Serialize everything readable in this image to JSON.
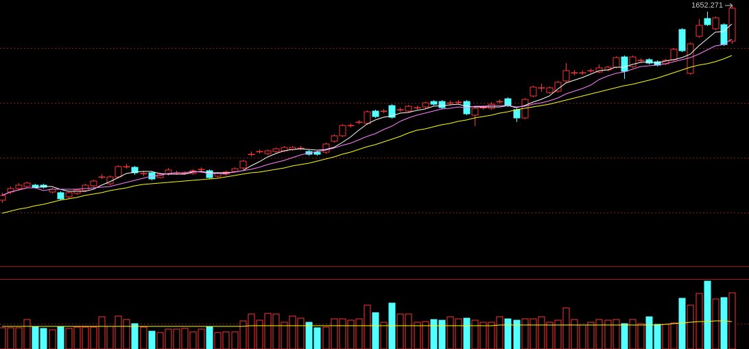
{
  "chart_data": [
    {
      "type": "candlestick",
      "annotation": "1652.271",
      "ylim": [
        1272,
        1660
      ],
      "yticks": [
        1350,
        1430,
        1510,
        1590
      ],
      "grid": true,
      "up_color": "#ff3232",
      "down_color": "#54ffff",
      "open": [
        1368,
        1380,
        1385,
        1388,
        1390,
        1390,
        1380,
        1379,
        1373,
        1378,
        1382,
        1389,
        1402,
        1392,
        1402,
        1417,
        1416,
        1407,
        1408,
        1401,
        1406,
        1408,
        1407,
        1407,
        1413,
        1411,
        1403,
        1406,
        1410,
        1415,
        1435,
        1439,
        1436,
        1439,
        1440,
        1442,
        1444,
        1439,
        1438,
        1438,
        1454,
        1462,
        1477,
        1482,
        1480,
        1498,
        1498,
        1506,
        1500,
        1498,
        1503,
        1504,
        1512,
        1512,
        1510,
        1511,
        1512,
        1492,
        1503,
        1502,
        1512,
        1516,
        1500,
        1488,
        1520,
        1532,
        1525,
        1527,
        1542,
        1554,
        1554,
        1557,
        1555,
        1558,
        1562,
        1577,
        1563,
        1572,
        1573,
        1570,
        1567,
        1573,
        1617,
        1553,
        1607,
        1633,
        1618,
        1624,
        1600
      ],
      "high": [
        1379,
        1388,
        1393,
        1395,
        1392,
        1392,
        1386,
        1381,
        1381,
        1385,
        1392,
        1398,
        1406,
        1404,
        1419,
        1421,
        1418,
        1411,
        1410,
        1408,
        1415,
        1411,
        1410,
        1413,
        1416,
        1413,
        1409,
        1411,
        1416,
        1427,
        1439,
        1442,
        1442,
        1445,
        1447,
        1447,
        1447,
        1441,
        1440,
        1452,
        1464,
        1479,
        1480,
        1485,
        1499,
        1500,
        1501,
        1508,
        1503,
        1507,
        1506,
        1512,
        1514,
        1514,
        1513,
        1514,
        1514,
        1504,
        1506,
        1511,
        1515,
        1518,
        1502,
        1517,
        1535,
        1538,
        1534,
        1542,
        1568,
        1558,
        1557,
        1560,
        1566,
        1564,
        1578,
        1579,
        1579,
        1575,
        1575,
        1572,
        1574,
        1590,
        1619,
        1598,
        1632,
        1643,
        1636,
        1626,
        1652.271
      ],
      "low": [
        1364,
        1377,
        1382,
        1386,
        1385,
        1385,
        1378,
        1368,
        1370,
        1376,
        1380,
        1387,
        1399,
        1390,
        1400,
        1414,
        1405,
        1403,
        1397,
        1400,
        1404,
        1405,
        1405,
        1405,
        1410,
        1399,
        1401,
        1404,
        1408,
        1413,
        1432,
        1436,
        1434,
        1437,
        1438,
        1440,
        1441,
        1433,
        1433,
        1436,
        1452,
        1460,
        1474,
        1479,
        1478,
        1488,
        1495,
        1487,
        1497,
        1496,
        1500,
        1502,
        1506,
        1501,
        1507,
        1508,
        1492,
        1476,
        1500,
        1500,
        1509,
        1504,
        1482,
        1486,
        1518,
        1526,
        1523,
        1525,
        1540,
        1550,
        1551,
        1554,
        1553,
        1556,
        1560,
        1545,
        1561,
        1569,
        1566,
        1563,
        1565,
        1571,
        1584,
        1551,
        1605,
        1622,
        1616,
        1593,
        1596
      ],
      "close": [
        1375,
        1385,
        1390,
        1393,
        1387,
        1387,
        1384,
        1370,
        1379,
        1383,
        1390,
        1396,
        1402,
        1402,
        1417,
        1417,
        1408,
        1407,
        1399,
        1406,
        1412,
        1408,
        1407,
        1411,
        1413,
        1401,
        1407,
        1409,
        1414,
        1425,
        1435,
        1439,
        1440,
        1443,
        1445,
        1445,
        1444,
        1435,
        1435,
        1450,
        1462,
        1477,
        1477,
        1482,
        1497,
        1490,
        1498,
        1489,
        1500,
        1505,
        1503,
        1510,
        1508,
        1503,
        1510,
        1511,
        1494,
        1502,
        1503,
        1508,
        1512,
        1506,
        1488,
        1515,
        1533,
        1532,
        1532,
        1540,
        1557,
        1554,
        1554,
        1557,
        1561,
        1562,
        1576,
        1556,
        1577,
        1572,
        1568,
        1565,
        1572,
        1588,
        1586,
        1596,
        1623,
        1624,
        1634,
        1595,
        1648
      ],
      "series": [
        {
          "color": "#ffffff",
          "values": [
            1375,
            1380,
            1383,
            1386,
            1386,
            1388,
            1388,
            1384,
            1381,
            1381,
            1381,
            1384,
            1390,
            1395,
            1401,
            1407,
            1409,
            1410,
            1410,
            1407,
            1406,
            1406,
            1406,
            1409,
            1410,
            1408,
            1408,
            1408,
            1409,
            1411,
            1418,
            1424,
            1431,
            1436,
            1440,
            1442,
            1443,
            1442,
            1441,
            1442,
            1445,
            1452,
            1460,
            1470,
            1479,
            1485,
            1489,
            1491,
            1495,
            1496,
            1499,
            1501,
            1505,
            1506,
            1507,
            1508,
            1505,
            1504,
            1504,
            1504,
            1504,
            1506,
            1503,
            1506,
            1511,
            1515,
            1520,
            1530,
            1539,
            1543,
            1547,
            1552,
            1557,
            1558,
            1562,
            1562,
            1566,
            1569,
            1570,
            1568,
            1571,
            1573,
            1576,
            1581,
            1593,
            1603,
            1613,
            1614,
            1625
          ]
        },
        {
          "color": "#ff80ff",
          "values": [
            1375,
            1380,
            1383,
            1386,
            1386,
            1382,
            1384,
            1384,
            1384,
            1384,
            1385,
            1386,
            1387,
            1388,
            1391,
            1394,
            1397,
            1400,
            1403,
            1404,
            1407,
            1408,
            1408,
            1410,
            1409,
            1407,
            1407,
            1407,
            1409,
            1411,
            1413,
            1416,
            1420,
            1423,
            1426,
            1430,
            1434,
            1437,
            1439,
            1441,
            1444,
            1448,
            1451,
            1456,
            1461,
            1465,
            1471,
            1476,
            1483,
            1488,
            1492,
            1495,
            1498,
            1501,
            1502,
            1504,
            1503,
            1505,
            1505,
            1506,
            1506,
            1506,
            1504,
            1505,
            1508,
            1510,
            1513,
            1517,
            1523,
            1527,
            1531,
            1536,
            1544,
            1549,
            1553,
            1555,
            1559,
            1563,
            1564,
            1565,
            1567,
            1570,
            1573,
            1576,
            1581,
            1587,
            1593,
            1595,
            1603
          ]
        },
        {
          "color": "#ffff00",
          "values": [
            1349,
            1352,
            1355,
            1357,
            1360,
            1362,
            1365,
            1368,
            1370,
            1372,
            1375,
            1377,
            1379,
            1382,
            1384,
            1386,
            1389,
            1391,
            1392,
            1393,
            1394,
            1395,
            1396,
            1397,
            1398,
            1399,
            1400,
            1402,
            1404,
            1406,
            1408,
            1409,
            1411,
            1413,
            1415,
            1418,
            1420,
            1422,
            1425,
            1428,
            1431,
            1435,
            1438,
            1442,
            1446,
            1449,
            1453,
            1457,
            1461,
            1466,
            1470,
            1472,
            1475,
            1478,
            1480,
            1483,
            1485,
            1488,
            1490,
            1492,
            1495,
            1497,
            1500,
            1502,
            1504,
            1506,
            1508,
            1511,
            1514,
            1517,
            1520,
            1523,
            1526,
            1529,
            1532,
            1535,
            1537,
            1540,
            1543,
            1546,
            1550,
            1554,
            1558,
            1562,
            1565,
            1567,
            1570,
            1574,
            1579
          ]
        }
      ]
    },
    {
      "type": "volume",
      "ylim": [
        0,
        100
      ],
      "yticks": [
        37
      ],
      "grid": true,
      "values": [
        31,
        31,
        31,
        43,
        33,
        30,
        28,
        33,
        30,
        32,
        32,
        32,
        47,
        33,
        48,
        43,
        37,
        32,
        26,
        24,
        29,
        29,
        30,
        25,
        29,
        32,
        24,
        25,
        25,
        41,
        51,
        42,
        52,
        51,
        39,
        48,
        45,
        39,
        31,
        32,
        44,
        44,
        42,
        44,
        64,
        53,
        39,
        67,
        51,
        51,
        39,
        40,
        43,
        42,
        47,
        44,
        45,
        42,
        39,
        39,
        47,
        44,
        42,
        44,
        44,
        47,
        39,
        42,
        60,
        43,
        35,
        39,
        43,
        42,
        43,
        37,
        43,
        37,
        47,
        36,
        36,
        38,
        74,
        64,
        81,
        99,
        73,
        75,
        82
      ],
      "series": [
        {
          "color": "#ffff00",
          "values": [
            33,
            33,
            33,
            33,
            33,
            33,
            33,
            33,
            33,
            33,
            33,
            33,
            33,
            33,
            33,
            33,
            33,
            33,
            33,
            33,
            33,
            33,
            33,
            33,
            33,
            33,
            33,
            33,
            33,
            33,
            34,
            34,
            34,
            34,
            34,
            34,
            34,
            34,
            34,
            34,
            34,
            34,
            34,
            34,
            34,
            34,
            34,
            34,
            34,
            34,
            34,
            34,
            34,
            34,
            34,
            34,
            34,
            34,
            34,
            34,
            35,
            35,
            35,
            35,
            35,
            35,
            35,
            35,
            35,
            35,
            35,
            35,
            35,
            35,
            35,
            35,
            35,
            35,
            35,
            35,
            36,
            37,
            38,
            39,
            40,
            40,
            41,
            41,
            40
          ]
        }
      ]
    }
  ]
}
